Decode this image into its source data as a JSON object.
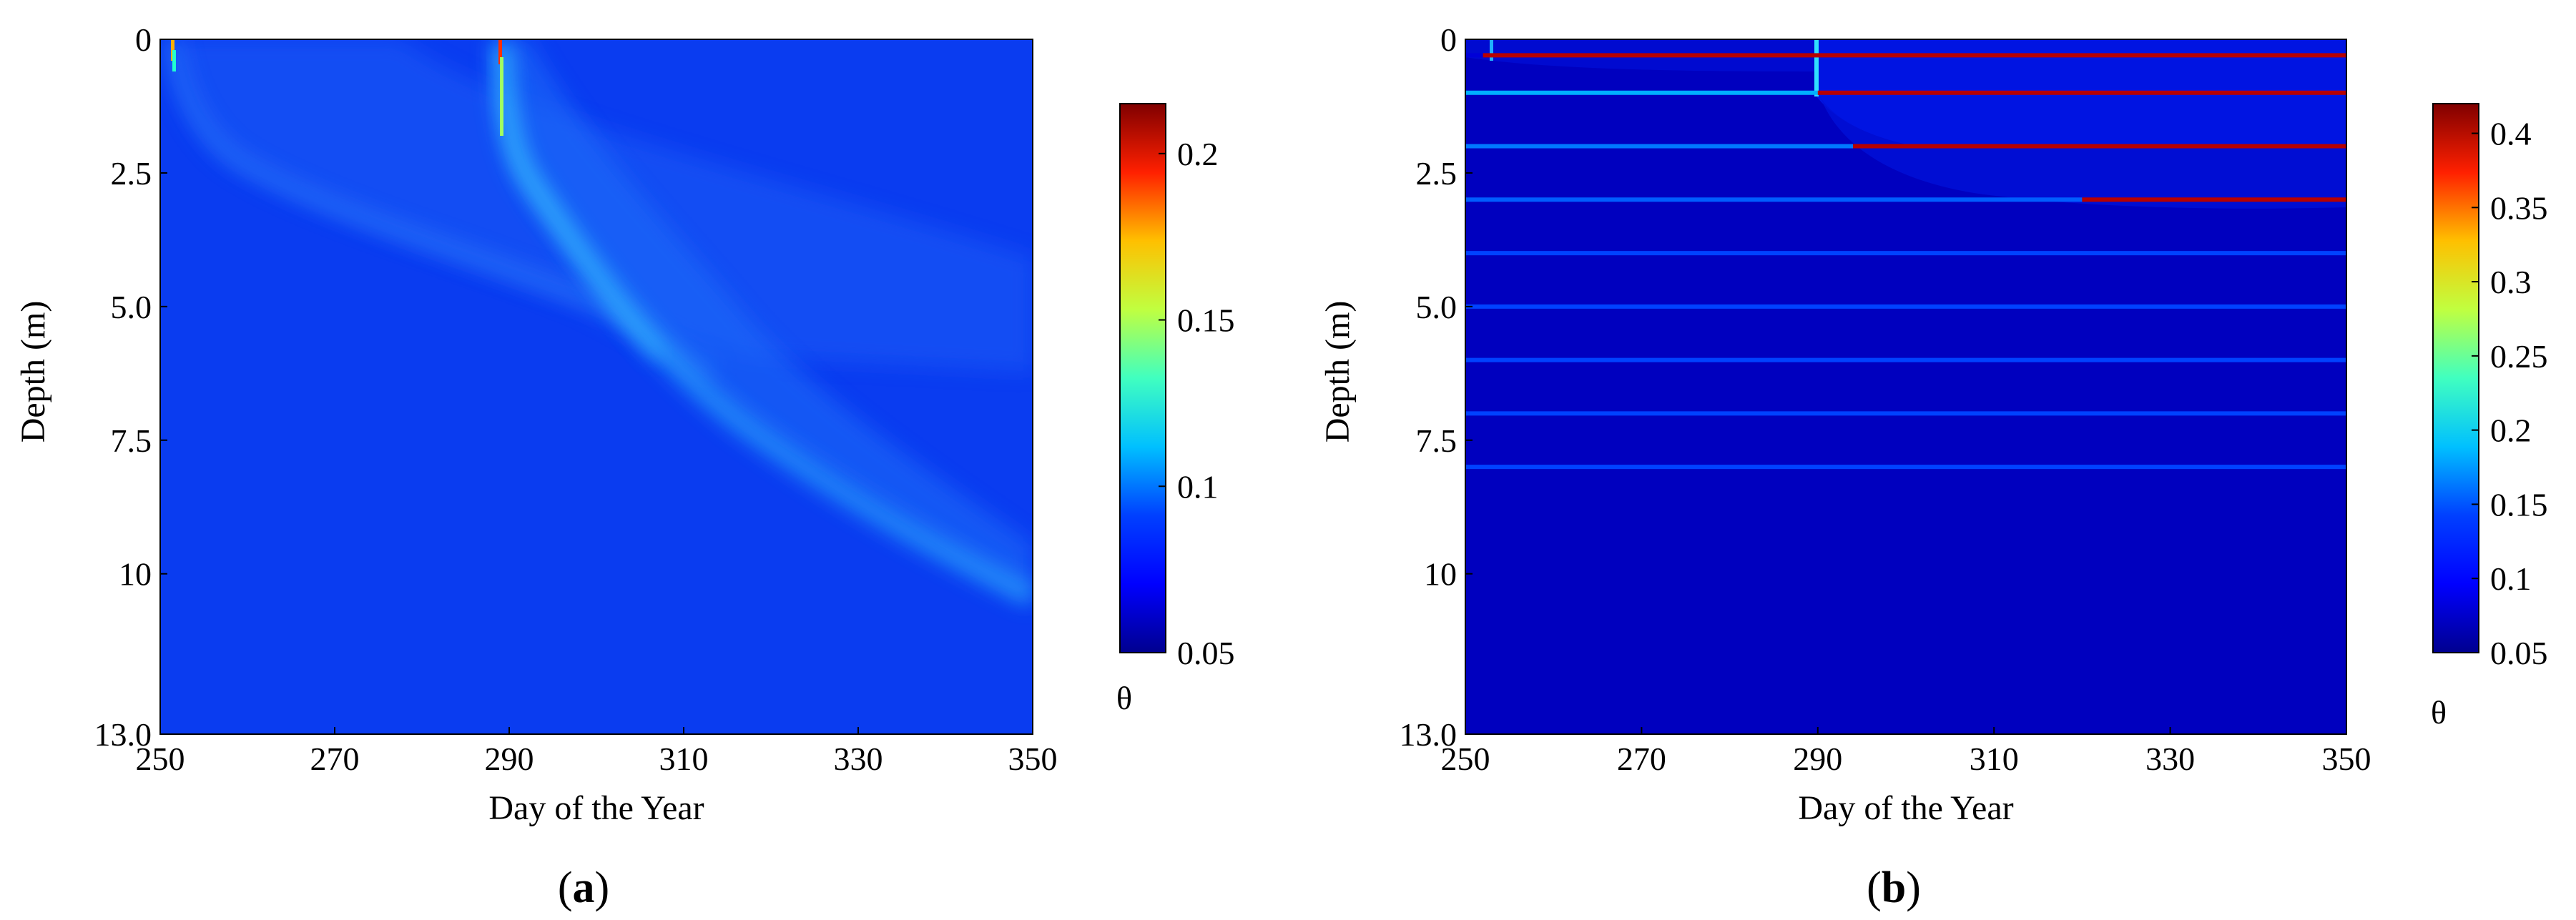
{
  "figure": {
    "panels": [
      {
        "label_prefix": "(",
        "label_letter": "a",
        "label_suffix": ")"
      },
      {
        "label_prefix": "(",
        "label_letter": "b",
        "label_suffix": ")"
      }
    ]
  },
  "colors": {
    "background": "#0000c4",
    "field_a": "#0a3cf0",
    "colormap": [
      "#00008f",
      "#0000ff",
      "#0080ff",
      "#00ffff",
      "#80ff80",
      "#ffff00",
      "#ff8000",
      "#ff0000",
      "#800000"
    ]
  },
  "chart_data": [
    {
      "type": "heatmap",
      "panel": "a",
      "title": "",
      "xlabel": "Day of the Year",
      "ylabel": "Depth (m)",
      "xlim": [
        250,
        350
      ],
      "ylim": [
        0,
        13.0
      ],
      "y_inverted": true,
      "xticks": [
        "250",
        "270",
        "290",
        "310",
        "330",
        "350"
      ],
      "xtick_values": [
        250,
        270,
        290,
        310,
        330,
        350
      ],
      "yticks": [
        "0",
        "2.5",
        "5.0",
        "7.5",
        "10",
        "13.0"
      ],
      "ytick_values": [
        0,
        2.5,
        5.0,
        7.5,
        10,
        13.0
      ],
      "colorbar": {
        "label": "θ",
        "range": [
          0.05,
          0.215
        ],
        "ticks": [
          "0.05",
          "0.1",
          "0.15",
          "0.2"
        ],
        "tick_values": [
          0.05,
          0.1,
          0.15,
          0.2
        ]
      },
      "background_value": 0.07,
      "infiltration_events": [
        {
          "day": 252,
          "surface_value": 0.2,
          "front_depth_at_350": 5.0
        },
        {
          "day": 290,
          "surface_value": 0.2,
          "front_depth_at_350": 10.2
        }
      ]
    },
    {
      "type": "heatmap",
      "panel": "b",
      "title": "",
      "xlabel": "Day of the Year",
      "ylabel": "Depth (m)",
      "xlim": [
        250,
        350
      ],
      "ylim": [
        0,
        13.0
      ],
      "y_inverted": true,
      "xticks": [
        "250",
        "270",
        "290",
        "310",
        "330",
        "350"
      ],
      "xtick_values": [
        250,
        270,
        290,
        310,
        330,
        350
      ],
      "yticks": [
        "0",
        "2.5",
        "5.0",
        "7.5",
        "10",
        "13.0"
      ],
      "ytick_values": [
        0,
        2.5,
        5.0,
        7.5,
        10,
        13.0
      ],
      "colorbar": {
        "label": "θ",
        "range": [
          0.05,
          0.42
        ],
        "ticks": [
          "0.05",
          "0.1",
          "0.15",
          "0.2",
          "0.25",
          "0.3",
          "0.35",
          "0.4"
        ],
        "tick_values": [
          0.05,
          0.1,
          0.15,
          0.2,
          0.25,
          0.3,
          0.35,
          0.4
        ]
      },
      "background_value": 0.06,
      "layer_lines": [
        {
          "depth": 0.3,
          "segments": [
            {
              "start": 250,
              "end": 252,
              "value": 0.08
            },
            {
              "start": 252,
              "end": 350,
              "value": 0.4
            }
          ]
        },
        {
          "depth": 1.0,
          "segments": [
            {
              "start": 250,
              "end": 290,
              "value": 0.16
            },
            {
              "start": 290,
              "end": 350,
              "value": 0.4
            }
          ]
        },
        {
          "depth": 2.0,
          "segments": [
            {
              "start": 250,
              "end": 294,
              "value": 0.14
            },
            {
              "start": 294,
              "end": 350,
              "value": 0.4
            }
          ]
        },
        {
          "depth": 3.0,
          "segments": [
            {
              "start": 250,
              "end": 320,
              "value": 0.13
            },
            {
              "start": 320,
              "end": 350,
              "value": 0.4
            }
          ]
        },
        {
          "depth": 4.0,
          "segments": [
            {
              "start": 250,
              "end": 350,
              "value": 0.12
            }
          ]
        },
        {
          "depth": 5.0,
          "segments": [
            {
              "start": 250,
              "end": 350,
              "value": 0.12
            }
          ]
        },
        {
          "depth": 6.0,
          "segments": [
            {
              "start": 250,
              "end": 350,
              "value": 0.12
            }
          ]
        },
        {
          "depth": 7.0,
          "segments": [
            {
              "start": 250,
              "end": 350,
              "value": 0.12
            }
          ]
        },
        {
          "depth": 8.0,
          "segments": [
            {
              "start": 250,
              "end": 350,
              "value": 0.12
            }
          ]
        }
      ],
      "surface_wetting_days": [
        252,
        290
      ]
    }
  ]
}
